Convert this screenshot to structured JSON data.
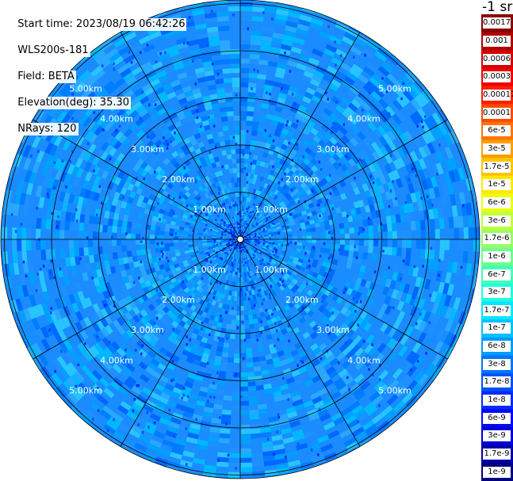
{
  "header": {
    "start_time": "Start time: 2023/08/19 06:42:26",
    "instrument": "WLS200s-181",
    "field": "Field: BETA",
    "elevation": "Elevation(deg): 35.30",
    "nrays": "NRays: 120"
  },
  "units_label": "-1 sr",
  "chart_data": {
    "type": "heatmap",
    "projection": "polar",
    "field": "BETA",
    "elevation_deg": 35.3,
    "n_rays": 120,
    "range_ring_labels": [
      "1.00km",
      "2.00km",
      "3.00km",
      "4.00km",
      "5.00km"
    ],
    "range_rings_km": [
      1,
      2,
      3,
      4,
      5
    ],
    "max_range_km": 5.0,
    "spoke_angles_deg": [
      0,
      30,
      60,
      90,
      120,
      150
    ],
    "colorbar": {
      "levels": [
        {
          "label": "0.0017",
          "color": "#8b0000"
        },
        {
          "label": "0.001",
          "color": "#b00000"
        },
        {
          "label": "0.0006",
          "color": "#d30000"
        },
        {
          "label": "0.0003",
          "color": "#f00000"
        },
        {
          "label": "0.00017",
          "color": "#ff2000"
        },
        {
          "label": "0.0001",
          "color": "#ff4a00"
        },
        {
          "label": "6e-5",
          "color": "#ff7400"
        },
        {
          "label": "3e-5",
          "color": "#ff9d00"
        },
        {
          "label": "1.7e-5",
          "color": "#ffc400"
        },
        {
          "label": "1e-5",
          "color": "#ffe800"
        },
        {
          "label": "6e-6",
          "color": "#eaff10"
        },
        {
          "label": "3e-6",
          "color": "#c0ff3a"
        },
        {
          "label": "1.7e-6",
          "color": "#98ff62"
        },
        {
          "label": "1e-6",
          "color": "#6eff8c"
        },
        {
          "label": "6e-7",
          "color": "#44ffb6"
        },
        {
          "label": "3e-7",
          "color": "#1cffde"
        },
        {
          "label": "1.7e-7",
          "color": "#00e6ff"
        },
        {
          "label": "1e-7",
          "color": "#00c2ff"
        },
        {
          "label": "6e-8",
          "color": "#009cff"
        },
        {
          "label": "3e-8",
          "color": "#0076ff"
        },
        {
          "label": "1.7e-8",
          "color": "#0050ff"
        },
        {
          "label": "1e-8",
          "color": "#002cff"
        },
        {
          "label": "6e-9",
          "color": "#0008ff"
        },
        {
          "label": "3e-9",
          "color": "#0000d8"
        },
        {
          "label": "1.7e-9",
          "color": "#0000a8"
        },
        {
          "label": "1e-9",
          "color": "#000080"
        }
      ]
    }
  }
}
